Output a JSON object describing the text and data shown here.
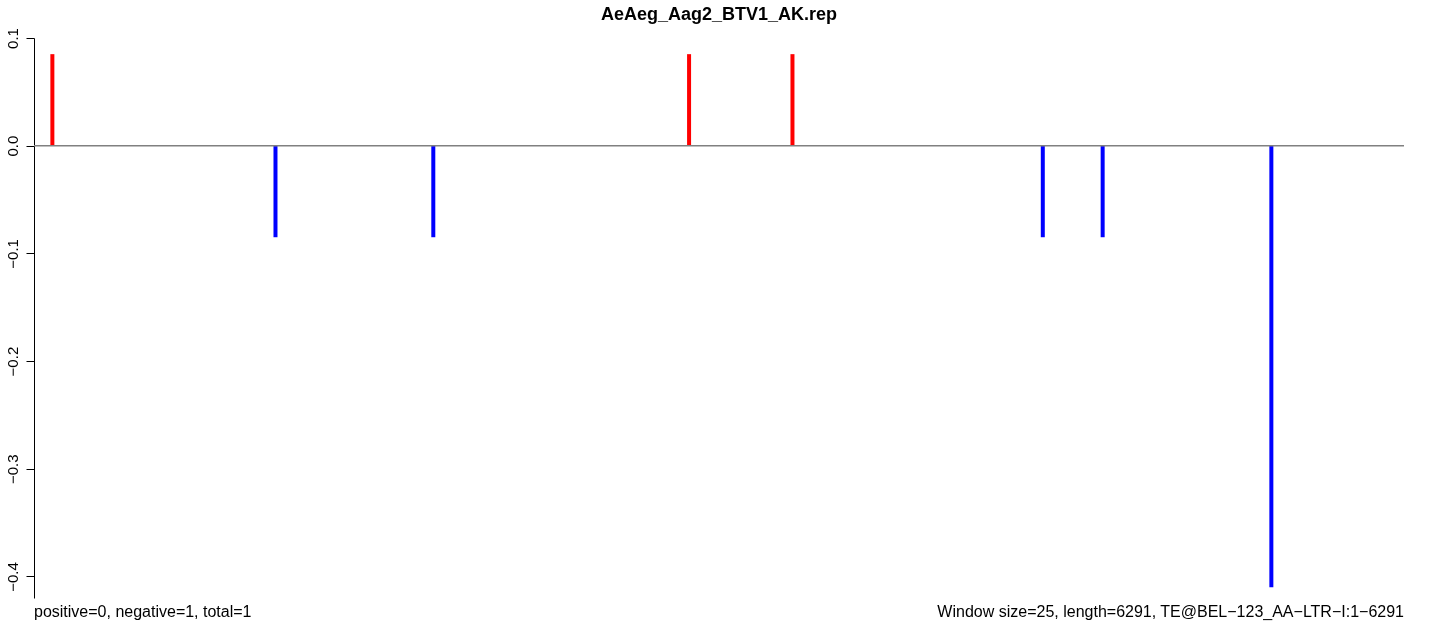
{
  "chart_data": {
    "type": "bar",
    "title": "AeAeg_Aag2_BTV1_AK.rep",
    "categories": [
      null,
      null,
      null,
      null,
      null,
      null,
      null,
      null,
      null,
      null,
      null,
      null,
      null,
      null,
      null,
      null,
      null,
      null,
      null,
      null,
      null,
      null,
      null,
      null,
      null,
      null,
      null,
      null,
      null,
      null,
      null,
      null,
      null,
      null,
      null,
      null,
      null,
      null,
      null,
      null,
      null,
      null,
      null,
      null,
      null,
      null,
      null,
      null,
      null,
      null,
      null,
      null,
      null,
      null,
      null,
      null,
      null,
      null,
      null,
      null,
      null,
      null,
      null,
      null,
      null,
      null,
      null,
      null,
      null,
      null,
      null,
      null,
      null,
      null,
      null,
      null,
      null,
      null,
      null,
      null,
      null,
      null,
      null,
      null,
      null,
      null,
      null,
      null,
      null,
      null,
      null,
      null,
      null,
      null,
      null,
      null,
      null,
      null,
      null,
      null,
      null,
      null,
      null,
      null,
      null,
      null,
      null,
      null,
      null,
      null,
      null,
      null,
      null,
      null,
      null,
      null,
      null,
      null,
      null,
      null,
      null,
      null,
      null,
      null,
      null,
      null,
      null,
      null,
      null,
      null,
      null,
      null,
      null,
      null,
      null,
      null,
      null,
      null,
      null,
      null,
      null,
      null,
      null,
      null,
      null,
      null,
      null,
      null,
      null,
      null,
      null,
      null,
      null,
      null,
      null,
      null,
      null,
      null,
      null,
      null,
      null,
      null,
      null,
      null,
      null,
      null,
      null,
      null,
      null,
      null,
      null,
      null,
      null,
      null,
      null,
      null,
      null,
      null,
      null,
      null,
      null,
      null,
      null,
      null,
      null,
      null,
      null,
      null,
      null,
      null,
      null,
      null,
      null,
      null,
      null,
      null,
      null,
      null,
      null,
      null,
      null,
      null,
      null,
      null,
      null,
      null,
      null,
      null,
      null,
      null,
      null,
      null,
      null,
      null,
      null,
      null,
      null,
      null,
      null,
      null,
      null,
      null,
      null,
      null,
      null,
      null,
      null,
      null,
      null,
      null,
      null,
      null,
      null,
      null,
      null,
      null,
      null,
      null,
      null,
      null,
      null,
      null,
      null,
      null,
      null,
      null,
      null,
      null,
      null,
      null,
      null,
      null
    ],
    "series": [
      {
        "color": "#ff0000",
        "values": [
          null,
          null,
          null,
          0.085,
          null,
          null,
          null,
          null,
          null,
          null,
          null,
          null,
          null,
          null,
          null,
          null,
          null,
          null,
          null,
          null,
          null,
          null,
          null,
          null,
          null,
          null,
          null,
          null,
          null,
          null,
          null,
          null,
          null,
          null,
          null,
          null,
          null,
          null,
          null,
          null,
          null,
          null,
          null,
          null,
          null,
          null,
          null,
          null,
          null,
          null,
          null,
          null,
          null,
          null,
          null,
          null,
          null,
          null,
          null,
          null,
          null,
          null,
          null,
          null,
          null,
          null,
          null,
          null,
          null,
          null,
          null,
          null,
          null,
          null,
          null,
          null,
          null,
          null,
          null,
          null,
          null,
          null,
          null,
          null,
          null,
          null,
          null,
          null,
          null,
          null,
          null,
          null,
          null,
          null,
          null,
          null,
          null,
          null,
          null,
          null,
          null,
          null,
          null,
          null,
          null,
          null,
          null,
          null,
          null,
          null,
          null,
          null,
          null,
          null,
          null,
          null,
          null,
          null,
          null,
          null,
          0.085,
          null,
          null,
          null,
          null,
          null,
          null,
          null,
          null,
          null,
          null,
          null,
          null,
          null,
          null,
          null,
          null,
          null,
          null,
          0.085,
          null,
          null,
          null,
          null,
          null,
          null,
          null,
          null,
          null,
          null,
          null,
          null,
          null,
          null,
          null,
          null,
          null,
          null,
          null,
          null,
          null,
          null,
          null,
          null,
          null,
          null,
          null,
          null,
          null,
          null,
          null,
          null,
          null,
          null,
          null,
          null,
          null,
          null,
          null,
          null,
          null,
          null,
          null,
          null,
          null,
          null,
          null,
          null,
          null,
          null,
          null,
          null,
          null,
          null,
          null,
          null,
          null,
          null,
          null,
          null,
          null,
          null,
          null,
          null,
          null,
          null,
          null,
          null,
          null,
          null,
          null,
          null,
          null,
          null,
          null,
          null,
          null,
          null,
          null,
          null,
          null,
          null,
          null,
          null,
          null,
          null,
          null,
          null,
          null,
          null,
          null,
          null,
          null,
          null,
          null,
          null,
          null,
          null,
          null,
          null,
          null,
          null,
          null,
          null,
          null,
          null,
          null,
          null,
          null,
          null,
          null,
          null
        ]
      },
      {
        "color": "#0000ff",
        "values": [
          null,
          null,
          null,
          null,
          null,
          null,
          null,
          null,
          null,
          null,
          null,
          null,
          null,
          null,
          null,
          null,
          null,
          null,
          null,
          null,
          null,
          null,
          null,
          null,
          null,
          null,
          null,
          null,
          null,
          null,
          null,
          null,
          null,
          null,
          null,
          null,
          null,
          null,
          null,
          null,
          null,
          null,
          null,
          null,
          -0.085,
          null,
          null,
          null,
          null,
          null,
          null,
          null,
          null,
          null,
          null,
          null,
          null,
          null,
          null,
          null,
          null,
          null,
          null,
          null,
          null,
          null,
          null,
          null,
          null,
          null,
          null,
          null,
          null,
          -0.085,
          null,
          null,
          null,
          null,
          null,
          null,
          null,
          null,
          null,
          null,
          null,
          null,
          null,
          null,
          null,
          null,
          null,
          null,
          null,
          null,
          null,
          null,
          null,
          null,
          null,
          null,
          null,
          null,
          null,
          null,
          null,
          null,
          null,
          null,
          null,
          null,
          null,
          null,
          null,
          null,
          null,
          null,
          null,
          null,
          null,
          null,
          null,
          null,
          null,
          null,
          null,
          null,
          null,
          null,
          null,
          null,
          null,
          null,
          null,
          null,
          null,
          null,
          null,
          null,
          null,
          null,
          null,
          null,
          null,
          null,
          null,
          null,
          null,
          null,
          null,
          null,
          null,
          null,
          null,
          null,
          null,
          null,
          null,
          null,
          null,
          null,
          null,
          null,
          null,
          null,
          null,
          null,
          null,
          null,
          null,
          null,
          null,
          null,
          null,
          null,
          null,
          null,
          null,
          null,
          null,
          null,
          null,
          null,
          null,
          null,
          null,
          -0.085,
          null,
          null,
          null,
          null,
          null,
          null,
          null,
          null,
          null,
          null,
          -0.085,
          null,
          null,
          null,
          null,
          null,
          null,
          null,
          null,
          null,
          null,
          null,
          null,
          null,
          null,
          null,
          null,
          null,
          null,
          null,
          null,
          null,
          null,
          null,
          null,
          null,
          null,
          null,
          null,
          null,
          null,
          -0.41,
          null,
          null,
          null,
          null,
          null,
          null,
          null,
          null,
          null,
          null,
          null,
          null,
          null,
          null,
          null,
          null,
          null,
          null,
          null,
          null,
          null,
          null,
          null,
          null
        ]
      }
    ],
    "ylim": [
      -0.42,
      0.1
    ],
    "yticks": [
      {
        "value": 0.1,
        "label": "0.1"
      },
      {
        "value": 0.0,
        "label": "0.0"
      },
      {
        "value": -0.1,
        "label": "−0.1"
      },
      {
        "value": -0.2,
        "label": "−0.2"
      },
      {
        "value": -0.3,
        "label": "−0.3"
      },
      {
        "value": -0.4,
        "label": "−0.4"
      }
    ],
    "ref_lines": [
      {
        "axis": "y",
        "value": 0,
        "color": "#808080"
      }
    ],
    "annotations": [
      "positive=0, negative=1, total=1",
      "Window size=25, length=6291, TE@BEL−123_AA−LTR−I:1−6291"
    ],
    "tick_labels": "y"
  }
}
